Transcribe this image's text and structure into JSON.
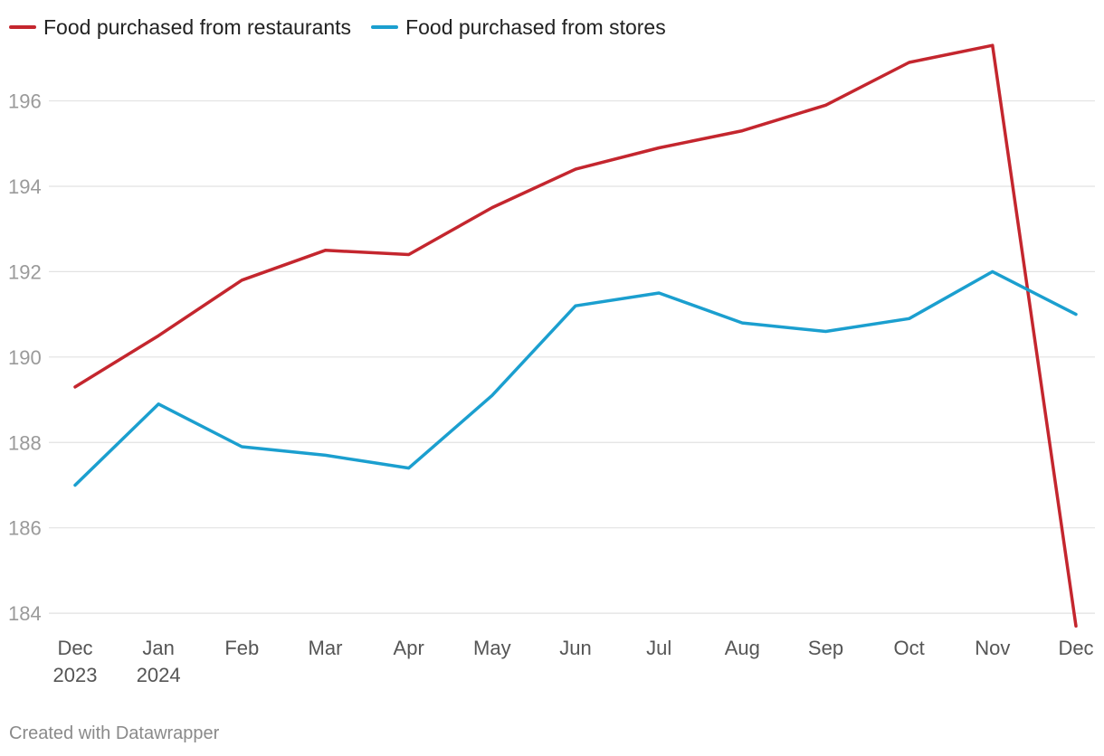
{
  "chart_data": {
    "type": "line",
    "title": "",
    "xlabel": "",
    "ylabel": "",
    "categories": [
      "Dec 2023",
      "Jan 2024",
      "Feb",
      "Mar",
      "Apr",
      "May",
      "Jun",
      "Jul",
      "Aug",
      "Sep",
      "Oct",
      "Nov",
      "Dec"
    ],
    "x_tick_labels": [
      [
        "Dec",
        "2023"
      ],
      [
        "Jan",
        "2024"
      ],
      [
        "Feb"
      ],
      [
        "Mar"
      ],
      [
        "Apr"
      ],
      [
        "May"
      ],
      [
        "Jun"
      ],
      [
        "Jul"
      ],
      [
        "Aug"
      ],
      [
        "Sep"
      ],
      [
        "Oct"
      ],
      [
        "Nov"
      ],
      [
        "Dec"
      ]
    ],
    "y_ticks": [
      184,
      186,
      188,
      190,
      192,
      194,
      196
    ],
    "ylim": [
      183.6,
      197.6
    ],
    "grid": true,
    "legend_position": "top-left",
    "series": [
      {
        "name": "Food purchased from restaurants",
        "color": "#c4262e",
        "values": [
          189.3,
          190.5,
          191.8,
          192.5,
          192.4,
          193.5,
          194.4,
          194.9,
          195.3,
          195.9,
          196.9,
          197.3,
          183.7
        ]
      },
      {
        "name": "Food purchased from stores",
        "color": "#1b9fcf",
        "values": [
          187.0,
          188.9,
          187.9,
          187.7,
          187.4,
          189.1,
          191.2,
          191.5,
          190.8,
          190.6,
          190.9,
          192.0,
          191.0
        ]
      }
    ]
  },
  "footer": {
    "credit": "Created with Datawrapper"
  }
}
